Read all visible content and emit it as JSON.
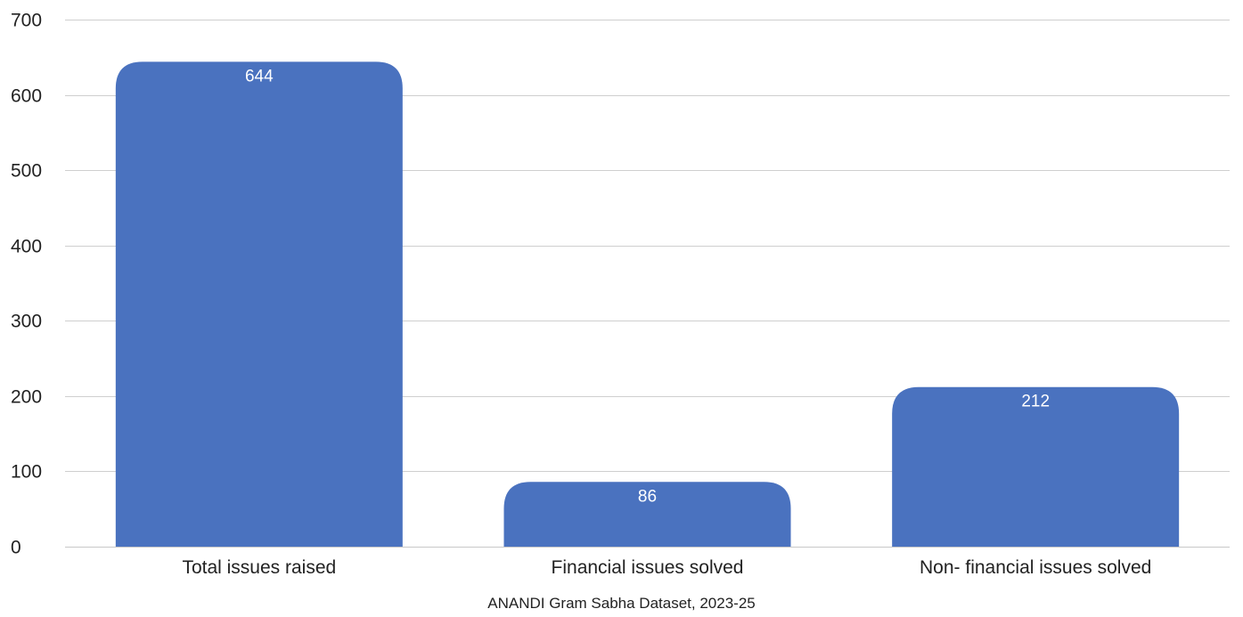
{
  "chart_data": {
    "type": "bar",
    "categories": [
      "Total issues raised",
      "Financial issues solved",
      "Non- financial issues solved"
    ],
    "values": [
      644,
      86,
      212
    ],
    "data_labels": [
      "644",
      "86",
      "212"
    ],
    "ylim": [
      0,
      700
    ],
    "yticks": [
      0,
      100,
      200,
      300,
      400,
      500,
      600,
      700
    ],
    "grid": true,
    "legend": "none",
    "bar_color": "#4a72bf",
    "data_label_color": "#ffffff",
    "gridline_color": "#cfcfcf"
  },
  "source_note": "ANANDI Gram Sabha Dataset, 2023-25"
}
